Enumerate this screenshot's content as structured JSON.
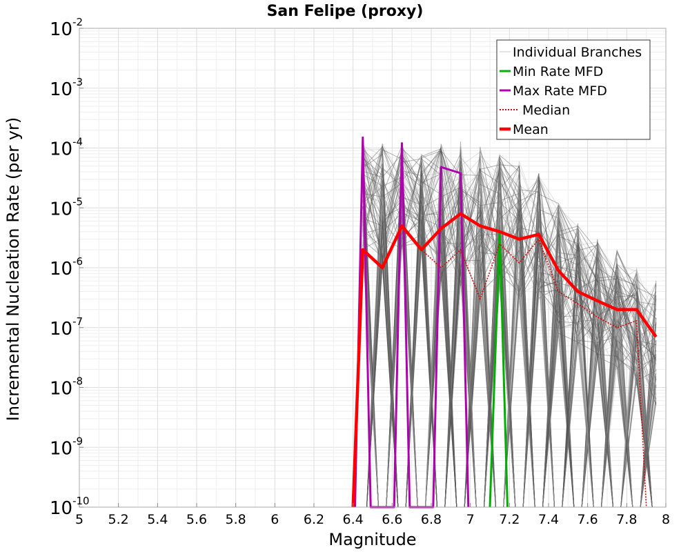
{
  "chart_data": {
    "type": "line",
    "title": "San Felipe (proxy)",
    "xlabel": "Magnitude",
    "ylabel": "Incremental Nucleation Rate (per yr)",
    "xlim": [
      5.0,
      8.0
    ],
    "ylim": [
      1e-10,
      0.01
    ],
    "yscale": "log",
    "grid": true,
    "legend_position": "top-right",
    "x_ticks": [
      "5",
      "5.2",
      "5.4",
      "5.6",
      "5.8",
      "6",
      "6.2",
      "6.4",
      "6.6",
      "6.8",
      "7",
      "7.2",
      "7.4",
      "7.6",
      "7.8",
      "8"
    ],
    "y_ticks": [
      {
        "base": "10",
        "exp": "-10",
        "value": 1e-10
      },
      {
        "base": "10",
        "exp": "-9",
        "value": 1e-09
      },
      {
        "base": "10",
        "exp": "-8",
        "value": 1e-08
      },
      {
        "base": "10",
        "exp": "-7",
        "value": 1e-07
      },
      {
        "base": "10",
        "exp": "-6",
        "value": 1e-06
      },
      {
        "base": "10",
        "exp": "-5",
        "value": 1e-05
      },
      {
        "base": "10",
        "exp": "-4",
        "value": 0.0001
      },
      {
        "base": "10",
        "exp": "-3",
        "value": 0.001
      },
      {
        "base": "10",
        "exp": "-2",
        "value": 0.01
      }
    ],
    "legend": [
      {
        "label": "Individual Branches",
        "color": "#c8c8c8",
        "style": "thin"
      },
      {
        "label": "Min Rate MFD",
        "color": "#00b000",
        "style": "solid"
      },
      {
        "label": "Max Rate MFD",
        "color": "#b000b0",
        "style": "solid"
      },
      {
        "label": "Median",
        "color": "#e00000",
        "style": "dotted"
      },
      {
        "label": "Mean",
        "color": "#ff0000",
        "style": "thick"
      }
    ],
    "series": [
      {
        "name": "Mean",
        "color": "#ff0000",
        "x": [
          6.4,
          6.45,
          6.55,
          6.65,
          6.75,
          6.85,
          6.95,
          7.05,
          7.15,
          7.25,
          7.35,
          7.45,
          7.55,
          7.65,
          7.75,
          7.85,
          7.95
        ],
        "y": [
          1e-10,
          2e-06,
          1e-06,
          5e-06,
          2e-06,
          4.5e-06,
          8e-06,
          5e-06,
          4e-06,
          3e-06,
          3.6e-06,
          9e-07,
          4e-07,
          2.8e-07,
          2e-07,
          2e-07,
          7e-08
        ]
      },
      {
        "name": "Median",
        "color": "#e00000",
        "x": [
          6.4,
          6.45,
          6.55,
          6.65,
          6.75,
          6.85,
          6.95,
          7.05,
          7.15,
          7.25,
          7.35,
          7.45,
          7.55,
          7.65,
          7.75,
          7.85,
          7.9
        ],
        "y": [
          1e-10,
          2e-06,
          1e-06,
          5e-06,
          2e-06,
          1e-06,
          2e-06,
          3e-07,
          2.5e-06,
          1.2e-06,
          3e-06,
          4e-07,
          2.5e-07,
          1.5e-07,
          1e-07,
          1.3e-07,
          1e-10
        ]
      },
      {
        "name": "Max Rate MFD",
        "color": "#b000b0",
        "x": [
          6.41,
          6.45,
          6.49,
          6.61,
          6.65,
          6.69,
          6.81,
          6.85,
          6.95,
          6.99
        ],
        "y": [
          1e-10,
          0.00015,
          1e-10,
          1e-10,
          0.00012,
          1e-10,
          1e-10,
          4.8e-05,
          3.8e-05,
          1e-10
        ]
      },
      {
        "name": "Min Rate MFD",
        "color": "#00b000",
        "x": [
          7.1,
          7.15,
          7.19
        ],
        "y": [
          1e-10,
          4e-06,
          1e-10
        ]
      }
    ],
    "branches": {
      "name": "Individual Branches",
      "peaks": [
        {
          "x": 6.45,
          "lo": 2e-06,
          "hi": 0.00015
        },
        {
          "x": 6.55,
          "lo": 1e-06,
          "hi": 0.00012
        },
        {
          "x": 6.65,
          "lo": 2e-06,
          "hi": 0.00012
        },
        {
          "x": 6.75,
          "lo": 2e-06,
          "hi": 8e-05
        },
        {
          "x": 6.85,
          "lo": 5e-07,
          "hi": 0.00012
        },
        {
          "x": 6.95,
          "lo": 5e-07,
          "hi": 0.00013
        },
        {
          "x": 7.05,
          "lo": 3e-07,
          "hi": 0.00013
        },
        {
          "x": 7.15,
          "lo": 5e-07,
          "hi": 8e-05
        },
        {
          "x": 7.25,
          "lo": 3e-07,
          "hi": 6e-05
        },
        {
          "x": 7.35,
          "lo": 3e-07,
          "hi": 4e-05
        },
        {
          "x": 7.45,
          "lo": 8e-08,
          "hi": 1.2e-05
        },
        {
          "x": 7.55,
          "lo": 5e-08,
          "hi": 6e-06
        },
        {
          "x": 7.65,
          "lo": 3e-08,
          "hi": 3e-06
        },
        {
          "x": 7.75,
          "lo": 2e-08,
          "hi": 2e-06
        },
        {
          "x": 7.85,
          "lo": 1e-08,
          "hi": 1e-06
        },
        {
          "x": 7.95,
          "lo": 5e-09,
          "hi": 7e-07
        }
      ]
    }
  }
}
